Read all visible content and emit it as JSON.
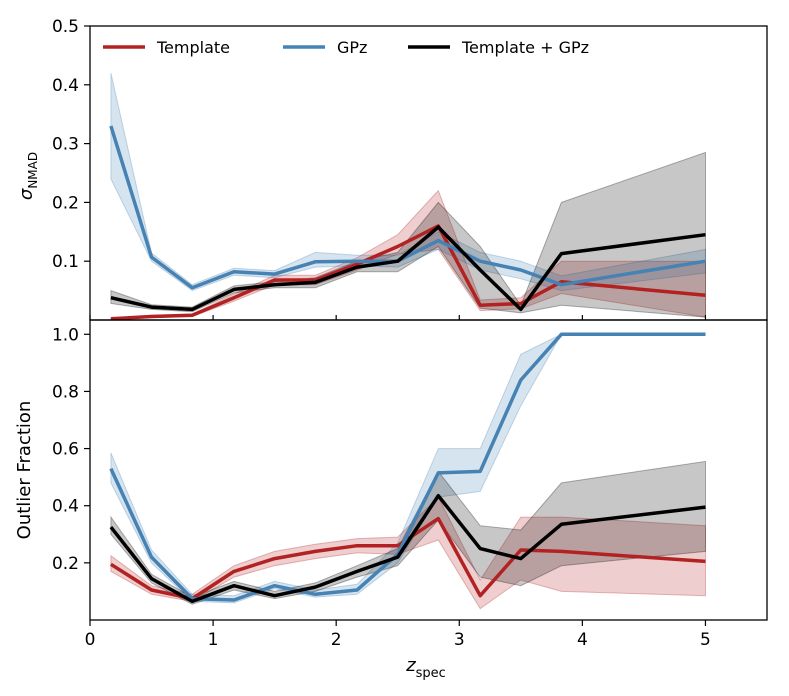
{
  "chart_data": [
    {
      "type": "line",
      "panel": "top",
      "ylabel": "σ",
      "ylabel_sub": "NMAD",
      "ylim": [
        0,
        0.5
      ],
      "yticks": [
        0.1,
        0.2,
        0.3,
        0.4,
        0.5
      ],
      "ytick_labels": [
        "0.1",
        "0.2",
        "0.3",
        "0.4",
        "0.5"
      ],
      "grid": false,
      "legend": [
        {
          "label": "Template",
          "color": "#b22222"
        },
        {
          "label": "GPz",
          "color": "#4682b4"
        },
        {
          "label": "Template + GPz",
          "color": "#000000"
        }
      ],
      "legend_placement": "top",
      "series": [
        {
          "name": "Template",
          "color": "#b22222",
          "x": [
            0.17,
            0.5,
            0.83,
            1.17,
            1.5,
            1.83,
            2.17,
            2.5,
            2.83,
            3.17,
            3.5,
            3.83,
            5.0
          ],
          "values": [
            0.002,
            0.006,
            0.008,
            0.038,
            0.068,
            0.068,
            0.095,
            0.125,
            0.16,
            0.025,
            0.028,
            0.065,
            0.042
          ],
          "lower": [
            0.001,
            0.004,
            0.006,
            0.032,
            0.06,
            0.06,
            0.085,
            0.112,
            0.12,
            0.016,
            0.019,
            0.045,
            0.005
          ],
          "upper": [
            0.003,
            0.008,
            0.01,
            0.044,
            0.076,
            0.076,
            0.106,
            0.145,
            0.22,
            0.034,
            0.038,
            0.1,
            0.1
          ]
        },
        {
          "name": "GPz",
          "color": "#4682b4",
          "x": [
            0.17,
            0.5,
            0.83,
            1.17,
            1.5,
            1.83,
            2.17,
            2.5,
            2.83,
            3.17,
            3.5,
            3.83,
            5.0
          ],
          "values": [
            0.33,
            0.107,
            0.055,
            0.082,
            0.078,
            0.099,
            0.1,
            0.1,
            0.135,
            0.1,
            0.085,
            0.06,
            0.1
          ],
          "lower": [
            0.24,
            0.1,
            0.05,
            0.076,
            0.072,
            0.09,
            0.092,
            0.09,
            0.12,
            0.085,
            0.07,
            0.05,
            0.08
          ],
          "upper": [
            0.42,
            0.114,
            0.06,
            0.088,
            0.084,
            0.115,
            0.11,
            0.11,
            0.15,
            0.115,
            0.1,
            0.075,
            0.12
          ]
        },
        {
          "name": "Template + GPz",
          "color": "#000000",
          "x": [
            0.17,
            0.5,
            0.83,
            1.17,
            1.5,
            1.83,
            2.17,
            2.5,
            2.83,
            3.17,
            3.5,
            3.83,
            5.0
          ],
          "values": [
            0.038,
            0.022,
            0.018,
            0.052,
            0.06,
            0.064,
            0.09,
            0.1,
            0.158,
            0.085,
            0.018,
            0.113,
            0.145
          ],
          "lower": [
            0.028,
            0.018,
            0.014,
            0.046,
            0.055,
            0.055,
            0.082,
            0.082,
            0.125,
            0.02,
            0.012,
            0.025,
            0.005
          ],
          "upper": [
            0.05,
            0.026,
            0.022,
            0.058,
            0.065,
            0.072,
            0.1,
            0.115,
            0.2,
            0.125,
            0.025,
            0.2,
            0.285
          ]
        }
      ]
    },
    {
      "type": "line",
      "panel": "bottom",
      "ylabel": "Outlier Fraction",
      "xlabel": "z",
      "xlabel_sub": "spec",
      "xlim": [
        0,
        5.5
      ],
      "xticks": [
        0,
        1,
        2,
        3,
        4,
        5
      ],
      "xtick_labels": [
        "0",
        "1",
        "2",
        "3",
        "4",
        "5"
      ],
      "ylim": [
        0,
        1.05
      ],
      "yticks": [
        0.2,
        0.4,
        0.6,
        0.8,
        1.0
      ],
      "ytick_labels": [
        "0.2",
        "0.4",
        "0.6",
        "0.8",
        "1.0"
      ],
      "grid": false,
      "series": [
        {
          "name": "Template",
          "color": "#b22222",
          "x": [
            0.17,
            0.5,
            0.83,
            1.17,
            1.5,
            1.83,
            2.17,
            2.5,
            2.83,
            3.17,
            3.5,
            3.83,
            5.0
          ],
          "values": [
            0.195,
            0.105,
            0.075,
            0.17,
            0.215,
            0.24,
            0.26,
            0.26,
            0.355,
            0.085,
            0.245,
            0.24,
            0.205
          ],
          "lower": [
            0.17,
            0.09,
            0.065,
            0.15,
            0.19,
            0.215,
            0.235,
            0.23,
            0.28,
            0.04,
            0.14,
            0.1,
            0.085
          ],
          "upper": [
            0.225,
            0.12,
            0.09,
            0.19,
            0.24,
            0.265,
            0.285,
            0.29,
            0.43,
            0.14,
            0.36,
            0.36,
            0.33
          ]
        },
        {
          "name": "GPz",
          "color": "#4682b4",
          "x": [
            0.17,
            0.5,
            0.83,
            1.17,
            1.5,
            1.83,
            2.17,
            2.5,
            2.83,
            3.17,
            3.5,
            3.83,
            5.0
          ],
          "values": [
            0.53,
            0.22,
            0.075,
            0.07,
            0.12,
            0.09,
            0.105,
            0.23,
            0.515,
            0.52,
            0.84,
            1.0,
            1.0
          ],
          "lower": [
            0.48,
            0.2,
            0.065,
            0.06,
            0.11,
            0.08,
            0.09,
            0.2,
            0.43,
            0.45,
            0.75,
            1.0,
            1.0
          ],
          "upper": [
            0.585,
            0.245,
            0.09,
            0.085,
            0.135,
            0.105,
            0.125,
            0.27,
            0.6,
            0.6,
            0.93,
            1.0,
            1.0
          ]
        },
        {
          "name": "Template + GPz",
          "color": "#000000",
          "x": [
            0.17,
            0.5,
            0.83,
            1.17,
            1.5,
            1.83,
            2.17,
            2.5,
            2.83,
            3.17,
            3.5,
            3.83,
            5.0
          ],
          "values": [
            0.325,
            0.145,
            0.065,
            0.12,
            0.085,
            0.115,
            0.17,
            0.22,
            0.435,
            0.25,
            0.215,
            0.335,
            0.395
          ],
          "lower": [
            0.3,
            0.13,
            0.055,
            0.105,
            0.075,
            0.1,
            0.15,
            0.19,
            0.35,
            0.15,
            0.12,
            0.19,
            0.24
          ],
          "upper": [
            0.36,
            0.16,
            0.08,
            0.135,
            0.1,
            0.13,
            0.19,
            0.25,
            0.52,
            0.33,
            0.315,
            0.48,
            0.555
          ]
        }
      ]
    }
  ]
}
